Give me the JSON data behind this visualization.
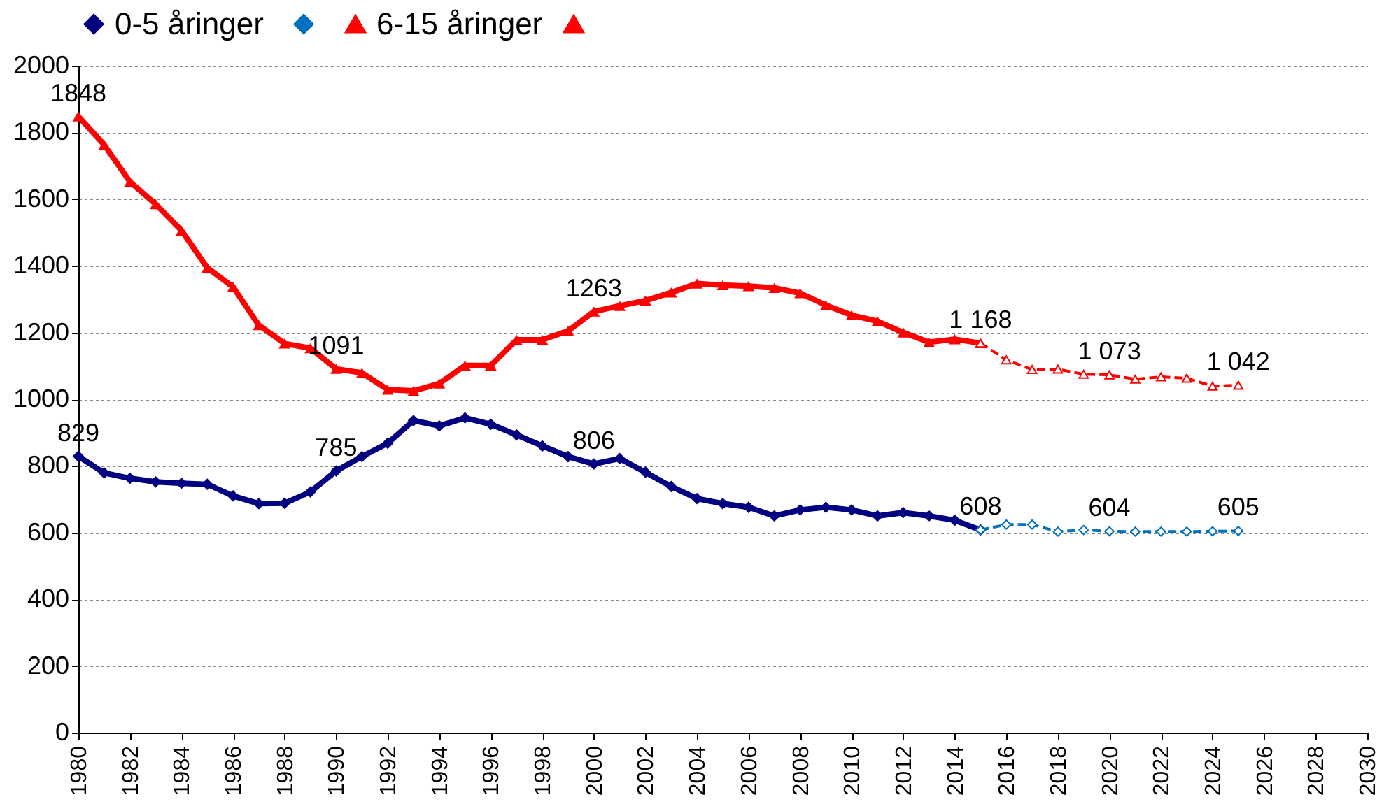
{
  "chart_data": {
    "type": "line",
    "legend": "top",
    "grid": "y",
    "xlim": [
      1980,
      2030
    ],
    "xticks": [
      1980,
      1982,
      1984,
      1986,
      1988,
      1990,
      1992,
      1994,
      1996,
      1998,
      2000,
      2002,
      2004,
      2006,
      2008,
      2010,
      2012,
      2014,
      2016,
      2018,
      2020,
      2022,
      2024,
      2026,
      2028,
      2030
    ],
    "ylim": [
      0,
      2000
    ],
    "yticks": [
      0,
      200,
      400,
      600,
      800,
      1000,
      1200,
      1400,
      1600,
      1800,
      2000
    ],
    "series": [
      {
        "name": "0-5  åringer",
        "color": "#000080",
        "marker": "diamond",
        "line_style": "solid",
        "x": [
          1980,
          1981,
          1982,
          1983,
          1984,
          1985,
          1986,
          1987,
          1988,
          1989,
          1990,
          1991,
          1992,
          1993,
          1994,
          1995,
          1996,
          1997,
          1998,
          1999,
          2000,
          2001,
          2002,
          2003,
          2004,
          2005,
          2006,
          2007,
          2008,
          2009,
          2010,
          2011,
          2012,
          2013,
          2014,
          2015
        ],
        "values": [
          829,
          779,
          763,
          752,
          748,
          745,
          710,
          687,
          688,
          722,
          785,
          828,
          868,
          936,
          920,
          944,
          925,
          893,
          860,
          828,
          806,
          822,
          781,
          738,
          702,
          687,
          676,
          650,
          668,
          676,
          668,
          650,
          660,
          650,
          637,
          608
        ],
        "value_labels": [
          "829",
          null,
          null,
          null,
          null,
          null,
          null,
          null,
          null,
          null,
          "785",
          null,
          null,
          null,
          null,
          null,
          null,
          null,
          null,
          null,
          "806",
          null,
          null,
          null,
          null,
          null,
          null,
          null,
          null,
          null,
          null,
          null,
          null,
          null,
          null,
          "608"
        ]
      },
      {
        "color": "#0070c0",
        "marker": "diamond",
        "line_style": "dashed",
        "x": [
          2015,
          2016,
          2017,
          2018,
          2019,
          2020,
          2021,
          2022,
          2023,
          2024,
          2025
        ],
        "values": [
          608,
          624,
          624,
          603,
          608,
          604,
          603,
          603,
          603,
          604,
          605
        ],
        "value_labels": [
          null,
          null,
          null,
          null,
          null,
          "604",
          null,
          null,
          null,
          null,
          "605"
        ]
      },
      {
        "name": "6-15 åringer",
        "color": "#ff0000",
        "marker": "triangle",
        "line_style": "solid",
        "x": [
          1980,
          1981,
          1982,
          1983,
          1984,
          1985,
          1986,
          1987,
          1988,
          1989,
          1990,
          1991,
          1992,
          1993,
          1994,
          1995,
          1996,
          1997,
          1998,
          1999,
          2000,
          2001,
          2002,
          2003,
          2004,
          2005,
          2006,
          2007,
          2008,
          2009,
          2010,
          2011,
          2012,
          2013,
          2014,
          2015
        ],
        "values": [
          1848,
          1763,
          1652,
          1585,
          1506,
          1394,
          1337,
          1222,
          1167,
          1153,
          1091,
          1079,
          1029,
          1025,
          1047,
          1101,
          1101,
          1178,
          1178,
          1205,
          1263,
          1280,
          1296,
          1320,
          1347,
          1342,
          1339,
          1334,
          1318,
          1282,
          1252,
          1234,
          1200,
          1171,
          1180,
          1168
        ],
        "value_labels": [
          "1848",
          null,
          null,
          null,
          null,
          null,
          null,
          null,
          null,
          null,
          "1091",
          null,
          null,
          null,
          null,
          null,
          null,
          null,
          null,
          null,
          "1263",
          null,
          null,
          null,
          null,
          null,
          null,
          null,
          null,
          null,
          null,
          null,
          null,
          null,
          null,
          "1 168"
        ]
      },
      {
        "color": "#ff0000",
        "marker": "triangle",
        "line_style": "dashed",
        "x": [
          2015,
          2016,
          2017,
          2018,
          2019,
          2020,
          2021,
          2022,
          2023,
          2024,
          2025
        ],
        "values": [
          1168,
          1118,
          1089,
          1090,
          1075,
          1073,
          1060,
          1067,
          1063,
          1039,
          1042
        ],
        "value_labels": [
          null,
          null,
          null,
          null,
          null,
          "1 073",
          null,
          null,
          null,
          null,
          "1 042"
        ]
      }
    ]
  }
}
